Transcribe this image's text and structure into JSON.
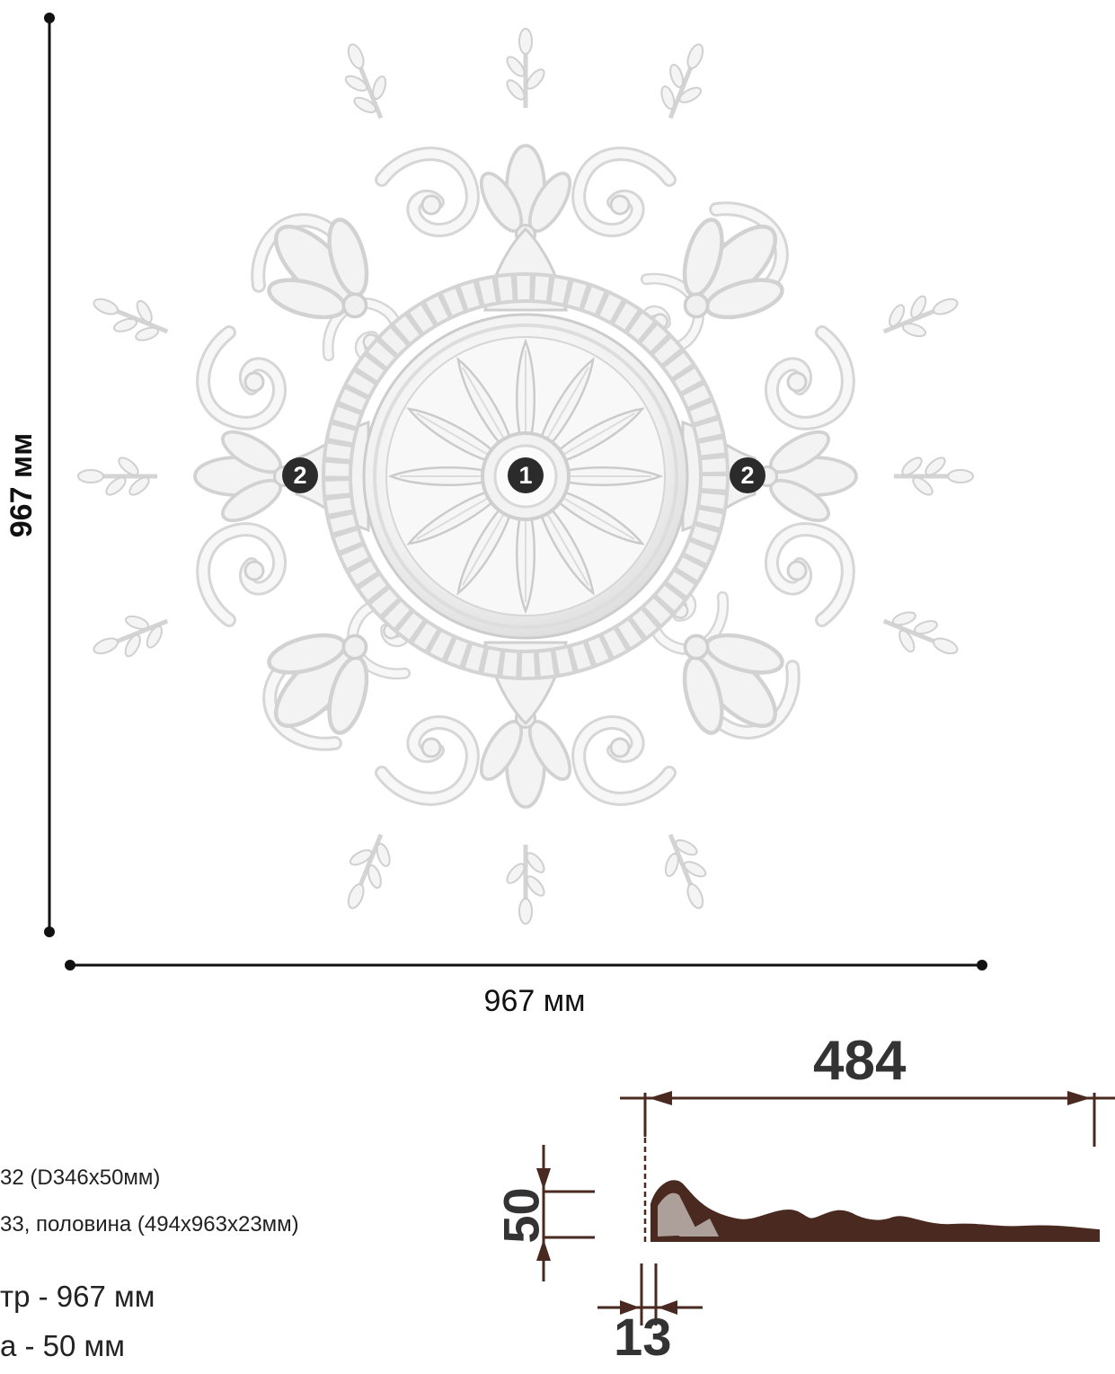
{
  "dimensions": {
    "height_label": "967 мм",
    "width_label": "967 мм"
  },
  "callouts": {
    "center_part": "1",
    "side_part": "2"
  },
  "legend": {
    "line1": "32 (D346x50мм)",
    "line2": "33, половина (494x963x23мм)",
    "line3": "тр - 967 мм",
    "line4": "а - 50 мм"
  },
  "profile": {
    "width": "484",
    "height": "50",
    "offset": "13",
    "color": "#4a2a20"
  },
  "colors": {
    "ornament": "#eeeeee",
    "ornament_shadow": "#cfcfcf",
    "dimension_line": "#111111",
    "badge": "#2b2b2b"
  }
}
